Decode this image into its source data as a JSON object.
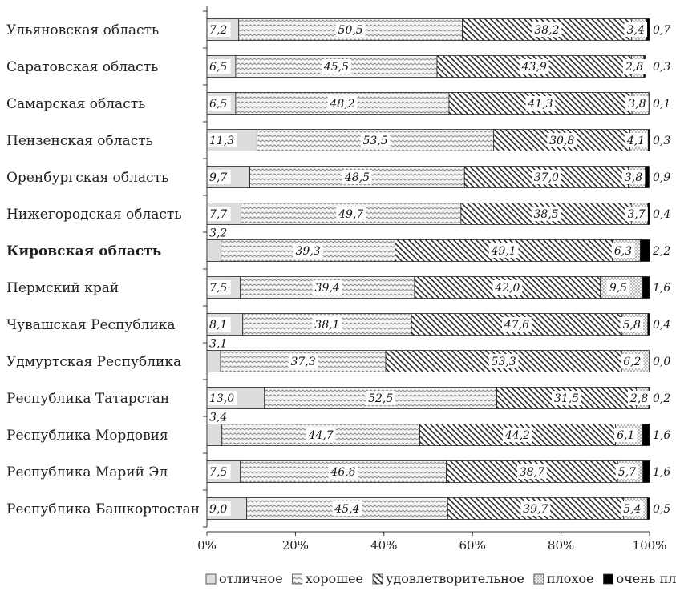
{
  "chart_data": {
    "type": "bar",
    "orientation": "horizontal",
    "stacked": "percent",
    "categories": [
      "Ульяновская область",
      "Саратовская область",
      "Самарская область",
      "Пензенская область",
      "Оренбургская область",
      "Нижегородская область",
      "Кировская область",
      "Пермский край",
      "Чувашская Республика",
      "Удмуртская Республика",
      "Республика Татарстан",
      "Республика Мордовия",
      "Республика Марий Эл",
      "Республика Башкортостан"
    ],
    "highlight_category": "Кировская область",
    "series": [
      {
        "name": "отличное",
        "values": [
          7.2,
          6.5,
          6.5,
          11.3,
          9.7,
          7.7,
          3.2,
          7.5,
          8.1,
          3.1,
          13.0,
          3.4,
          7.5,
          9.0
        ],
        "labels": [
          "7,2",
          "6,5",
          "6,5",
          "11,3",
          "9,7",
          "7,7",
          "3,2",
          "7,5",
          "8,1",
          "3,1",
          "13,0",
          "3,4",
          "7,5",
          "9,0"
        ]
      },
      {
        "name": "хорошее",
        "values": [
          50.5,
          45.5,
          48.2,
          53.5,
          48.5,
          49.7,
          39.3,
          39.4,
          38.1,
          37.3,
          52.5,
          44.7,
          46.6,
          45.4
        ],
        "labels": [
          "50,5",
          "45,5",
          "48,2",
          "53,5",
          "48,5",
          "49,7",
          "39,3",
          "39,4",
          "38,1",
          "37,3",
          "52,5",
          "44,7",
          "46,6",
          "45,4"
        ]
      },
      {
        "name": "удовлетворительное",
        "values": [
          38.2,
          43.9,
          41.3,
          30.8,
          37.0,
          38.5,
          49.1,
          42.0,
          47.6,
          53.3,
          31.5,
          44.2,
          38.7,
          39.7
        ],
        "labels": [
          "38,2",
          "43,9",
          "41,3",
          "30,8",
          "37,0",
          "38,5",
          "49,1",
          "42,0",
          "47,6",
          "53,3",
          "31,5",
          "44,2",
          "38,7",
          "39,7"
        ]
      },
      {
        "name": "плохое",
        "values": [
          3.4,
          2.8,
          3.8,
          4.1,
          3.8,
          3.7,
          6.3,
          9.5,
          5.8,
          6.2,
          2.8,
          6.1,
          5.7,
          5.4
        ],
        "labels": [
          "3,4",
          "2,8",
          "3,8",
          "4,1",
          "3,8",
          "3,7",
          "6,3",
          "9,5",
          "5,8",
          "6,2",
          "2,8",
          "6,1",
          "5,7",
          "5,4"
        ]
      },
      {
        "name": "очень плохое",
        "values": [
          0.7,
          0.3,
          0.1,
          0.3,
          0.9,
          0.4,
          2.2,
          1.6,
          0.4,
          0.0,
          0.2,
          1.6,
          1.6,
          0.5
        ],
        "labels": [
          "0,7",
          "0,3",
          "0,1",
          "0,3",
          "0,9",
          "0,4",
          "2,2",
          "1,6",
          "0,4",
          "0,0",
          "0,2",
          "1,6",
          "1,6",
          "0,5"
        ]
      }
    ],
    "x_ticks": [
      "0%",
      "20%",
      "40%",
      "60%",
      "80%",
      "100%"
    ],
    "xlim": [
      0,
      100
    ],
    "xlabel": "",
    "ylabel": "",
    "title": "",
    "grid": false,
    "legend_position": "bottom",
    "colors": {
      "отличное": "#dcdcdc",
      "хорошее": "#f0f0f0",
      "удовлетворительное": "#ffffff",
      "плохое": "#e8e8e8",
      "очень плохое": "#000000"
    }
  }
}
